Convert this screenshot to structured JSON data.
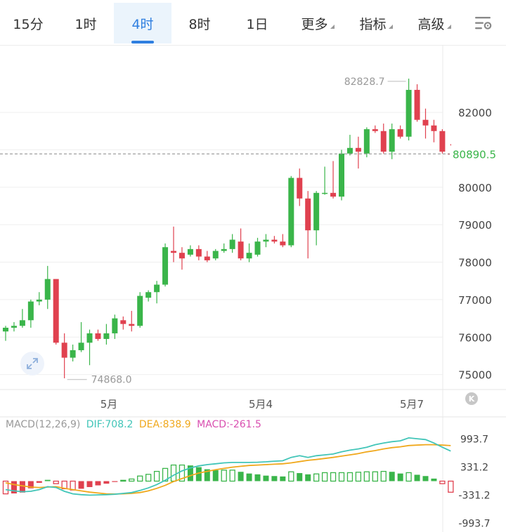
{
  "tabs": [
    {
      "label": "15分",
      "name": "tab-15m"
    },
    {
      "label": "1时",
      "name": "tab-1h"
    },
    {
      "label": "4时",
      "name": "tab-4h",
      "active": true
    },
    {
      "label": "8时",
      "name": "tab-8h"
    },
    {
      "label": "1日",
      "name": "tab-1d"
    },
    {
      "label": "更多",
      "name": "tab-more",
      "dropdown": true
    },
    {
      "label": "指标",
      "name": "tab-indicators",
      "dropdown": true
    },
    {
      "label": "高级",
      "name": "tab-advanced",
      "dropdown": true
    }
  ],
  "settings_icon": "settings-sliders-icon",
  "expand_icon": "expand-arrows-icon",
  "k_badge": "K",
  "colors": {
    "up": "#3ab54a",
    "down": "#e0414f",
    "accent": "#2f7fe0",
    "dif": "#41c5b8",
    "dea": "#f0a81c",
    "macd_label": "#d94fb0",
    "label": "#999999"
  },
  "chart_data": {
    "type": "candlestick",
    "price_axis": {
      "ticks": [
        82000,
        81000,
        80000,
        79000,
        78000,
        77000,
        76000,
        75000
      ],
      "range": [
        74600,
        83800
      ]
    },
    "date_labels": [
      "5月",
      "5月4",
      "5月7"
    ],
    "last_price": {
      "value": 80890.5,
      "label": "80890.5"
    },
    "high_label": {
      "value": 82828.7,
      "label": "82828.7"
    },
    "low_label": {
      "value": 74868.0,
      "label": "74868.0"
    },
    "candles": [
      [
        76150,
        76300,
        75900,
        76250
      ],
      [
        76250,
        76400,
        76150,
        76300
      ],
      [
        76300,
        76750,
        76250,
        76450
      ],
      [
        76450,
        77000,
        76250,
        76950
      ],
      [
        76950,
        77200,
        76850,
        77000
      ],
      [
        77000,
        77900,
        76750,
        77550
      ],
      [
        77550,
        77550,
        75800,
        75850
      ],
      [
        75850,
        76100,
        74900,
        75450
      ],
      [
        75450,
        75800,
        75350,
        75650
      ],
      [
        75650,
        76400,
        75600,
        75850
      ],
      [
        75850,
        76200,
        75250,
        76100
      ],
      [
        76100,
        76200,
        75900,
        75950
      ],
      [
        75950,
        76350,
        75800,
        76100
      ],
      [
        76100,
        76600,
        75950,
        76500
      ],
      [
        76450,
        76550,
        76200,
        76350
      ],
      [
        76350,
        76700,
        76150,
        76300
      ],
      [
        76300,
        77200,
        76250,
        77100
      ],
      [
        77050,
        77250,
        76950,
        77200
      ],
      [
        77200,
        77500,
        76900,
        77400
      ],
      [
        77400,
        78500,
        77350,
        78400
      ],
      [
        78300,
        78950,
        78000,
        78250
      ],
      [
        78250,
        78400,
        77800,
        78100
      ],
      [
        78200,
        78450,
        78150,
        78350
      ],
      [
        78350,
        78450,
        78050,
        78150
      ],
      [
        78150,
        78300,
        78000,
        78050
      ],
      [
        78100,
        78350,
        78050,
        78300
      ],
      [
        78300,
        78500,
        78250,
        78350
      ],
      [
        78350,
        78750,
        78250,
        78600
      ],
      [
        78550,
        78900,
        78050,
        78100
      ],
      [
        78100,
        78500,
        78000,
        78250
      ],
      [
        78200,
        78650,
        78150,
        78550
      ],
      [
        78550,
        78750,
        78400,
        78600
      ],
      [
        78600,
        78700,
        78500,
        78550
      ],
      [
        78550,
        78750,
        78400,
        78450
      ],
      [
        78450,
        80300,
        78400,
        80250
      ],
      [
        80250,
        80500,
        79500,
        79700
      ],
      [
        79700,
        79900,
        78100,
        78850
      ],
      [
        78850,
        79900,
        78450,
        79850
      ],
      [
        79850,
        80550,
        79800,
        79850
      ],
      [
        79850,
        80700,
        79700,
        79750
      ],
      [
        79750,
        81000,
        79650,
        80900
      ],
      [
        80900,
        81400,
        80850,
        81050
      ],
      [
        81050,
        81350,
        80500,
        80950
      ],
      [
        80900,
        81600,
        80800,
        81550
      ],
      [
        81550,
        81650,
        81450,
        81500
      ],
      [
        81500,
        81700,
        80900,
        80950
      ],
      [
        80950,
        81700,
        80750,
        81550
      ],
      [
        81550,
        81650,
        81300,
        81350
      ],
      [
        81350,
        82900,
        81250,
        82600
      ],
      [
        82600,
        82750,
        81750,
        81800
      ],
      [
        81800,
        82100,
        81300,
        81650
      ],
      [
        81650,
        81800,
        81200,
        81500
      ],
      [
        81500,
        81550,
        80900,
        80950
      ],
      [
        80900,
        81150,
        80750,
        80890.5
      ]
    ],
    "macd": {
      "params": "MACD(12,26,9)",
      "dif_label": "DIF:708.2",
      "dea_label": "DEA:838.9",
      "macd_label": "MACD:-261.5",
      "axis_ticks": [
        993.7,
        331.2,
        -331.2,
        -993.7
      ],
      "axis_tick_labels": [
        "993.7",
        "331.2",
        "-331.2",
        "-993.7"
      ],
      "range": [
        -1200,
        1300
      ],
      "dif": [
        -200,
        -230,
        -250,
        -240,
        -200,
        -130,
        -150,
        -240,
        -300,
        -320,
        -330,
        -325,
        -320,
        -310,
        -290,
        -270,
        -220,
        -160,
        -80,
        20,
        140,
        240,
        310,
        360,
        390,
        410,
        430,
        440,
        440,
        440,
        445,
        455,
        470,
        480,
        560,
        600,
        560,
        600,
        620,
        640,
        690,
        730,
        760,
        800,
        860,
        900,
        930,
        950,
        1020,
        1000,
        980,
        900,
        800,
        708.2
      ],
      "dea": [
        -40,
        -80,
        -110,
        -140,
        -150,
        -140,
        -130,
        -170,
        -200,
        -230,
        -260,
        -280,
        -300,
        -305,
        -300,
        -290,
        -270,
        -230,
        -170,
        -100,
        -10,
        60,
        130,
        190,
        230,
        270,
        300,
        330,
        350,
        370,
        380,
        390,
        400,
        410,
        430,
        460,
        490,
        510,
        535,
        560,
        590,
        620,
        650,
        690,
        720,
        760,
        790,
        810,
        840,
        850,
        860,
        860,
        850,
        838.9
      ],
      "hist": [
        -300,
        -290,
        -270,
        -170,
        -40,
        30,
        -60,
        -180,
        -210,
        -180,
        -140,
        -100,
        -60,
        -20,
        20,
        50,
        120,
        160,
        230,
        300,
        380,
        380,
        370,
        330,
        280,
        260,
        260,
        260,
        220,
        180,
        160,
        130,
        120,
        110,
        220,
        190,
        160,
        170,
        200,
        200,
        200,
        200,
        210,
        220,
        220,
        230,
        220,
        180,
        200,
        150,
        120,
        60,
        -60,
        -261.5
      ]
    }
  }
}
